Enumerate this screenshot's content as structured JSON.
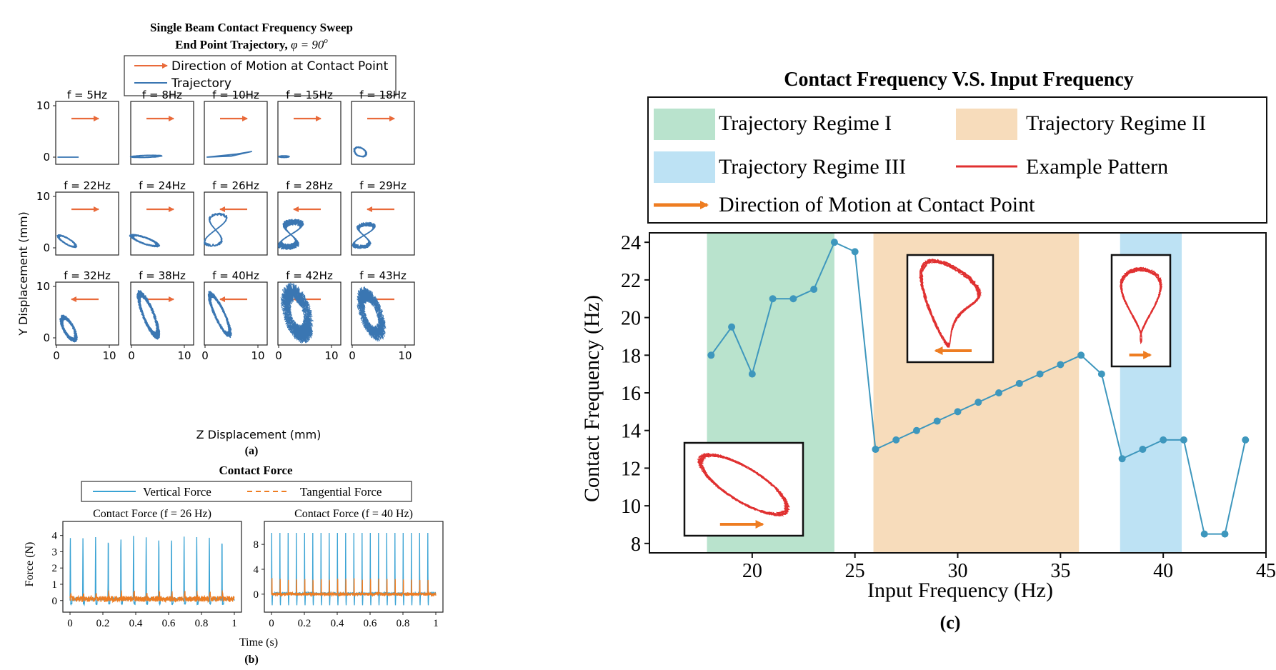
{
  "colors": {
    "traj_blue": "#3a76b2",
    "arrow_orange": "#e96a3a",
    "force_blue": "#3aa3d4",
    "force_orange": "#ee7d22",
    "line_teal": "#3e97bd",
    "regime1": "#b9e3cd",
    "regime2": "#f7dcbb",
    "regime3": "#bde2f4",
    "pattern_red": "#e03030"
  },
  "panel_a": {
    "title_line1": "Single Beam Contact Frequency Sweep",
    "title_line2": "End Point Trajectory, ",
    "title_phi": "φ = 90",
    "title_sup": "o",
    "legend_arrow": "Direction of Motion at Contact Point",
    "legend_traj": "Trajectory",
    "ylabel": "Y Displacement (mm)",
    "xlabel": "Z Displacement (mm)",
    "caption": "(a)",
    "ytick_labels": [
      "0",
      "10"
    ],
    "xtick_labels": [
      "0",
      "10"
    ],
    "subplots": [
      {
        "label": "f = 5Hz",
        "arrow": "right",
        "shape": "line"
      },
      {
        "label": "f = 8Hz",
        "arrow": "right",
        "shape": "thin"
      },
      {
        "label": "f = 10Hz",
        "arrow": "right",
        "shape": "wedge"
      },
      {
        "label": "f = 15Hz",
        "arrow": "right",
        "shape": "dot"
      },
      {
        "label": "f = 18Hz",
        "arrow": "right",
        "shape": "smallloop"
      },
      {
        "label": "f = 22Hz",
        "arrow": "right",
        "shape": "band"
      },
      {
        "label": "f = 24Hz",
        "arrow": "right",
        "shape": "band2"
      },
      {
        "label": "f = 26Hz",
        "arrow": "left",
        "shape": "eight"
      },
      {
        "label": "f = 28Hz",
        "arrow": "left",
        "shape": "cluster"
      },
      {
        "label": "f = 29Hz",
        "arrow": "left",
        "shape": "loops"
      },
      {
        "label": "f = 32Hz",
        "arrow": "left",
        "shape": "tri"
      },
      {
        "label": "f = 38Hz",
        "arrow": "right",
        "shape": "tall"
      },
      {
        "label": "f = 40Hz",
        "arrow": "left",
        "shape": "tall2"
      },
      {
        "label": "f = 42Hz",
        "arrow": "left",
        "shape": "chaos"
      },
      {
        "label": "f = 43Hz",
        "arrow": "left",
        "shape": "chaos2"
      }
    ]
  },
  "panel_b": {
    "title": "Contact Force",
    "legend_vertical": "Vertical Force",
    "legend_tangential": "Tangential Force",
    "ylabel": "Force (N)",
    "xlabel": "Time (s)",
    "caption": "(b)",
    "plots": [
      {
        "title": "Contact Force (f = 26 Hz)",
        "frequency": 26,
        "yticks": [
          0,
          1,
          2,
          3,
          4
        ],
        "peak": 4.0,
        "tangential_peak": 0.35
      },
      {
        "title": "Contact Force (f = 40 Hz)",
        "frequency": 40,
        "yticks": [
          0,
          4,
          8
        ],
        "peak": 10.0,
        "tangential_peak": 3.0
      }
    ],
    "xticks": [
      "0",
      "0.2",
      "0.4",
      "0.6",
      "0.8",
      "1"
    ]
  },
  "chart_data": {
    "type": "line",
    "title": "Contact Frequency V.S. Input Frequency",
    "xlabel": "Input Frequency (Hz)",
    "ylabel": "Contact Frequency (Hz)",
    "caption": "(c)",
    "xlim": [
      15,
      45
    ],
    "ylim": [
      7.5,
      24.5
    ],
    "xticks": [
      20,
      25,
      30,
      35,
      40,
      45
    ],
    "yticks": [
      8,
      10,
      12,
      14,
      16,
      18,
      20,
      22,
      24
    ],
    "grid": false,
    "legend_position": "top",
    "regions": [
      {
        "name": "Trajectory Regime I",
        "x": [
          17.8,
          24
        ]
      },
      {
        "name": "Trajectory Regime II",
        "x": [
          25.9,
          35.9
        ]
      },
      {
        "name": "Trajectory Regime III",
        "x": [
          37.9,
          40.9
        ]
      }
    ],
    "legend": [
      "Trajectory Regime I",
      "Trajectory Regime II",
      "Trajectory Regime III",
      "Example Pattern",
      "Direction of Motion at Contact Point"
    ],
    "series": [
      {
        "x": [
          18,
          19,
          20,
          21,
          22,
          23,
          24,
          25,
          26,
          27,
          28,
          29,
          30,
          31,
          32,
          33,
          34,
          35,
          36,
          37,
          38,
          39,
          40,
          41,
          42,
          43,
          44
        ],
        "values": [
          18,
          19.5,
          17,
          21,
          21,
          21.5,
          24,
          23.5,
          13,
          13.5,
          14,
          14.5,
          15,
          15.5,
          16,
          16.5,
          17,
          17.5,
          18,
          17,
          12.5,
          13,
          13.5,
          13.5,
          8.5,
          8.5,
          13.5
        ]
      }
    ]
  }
}
